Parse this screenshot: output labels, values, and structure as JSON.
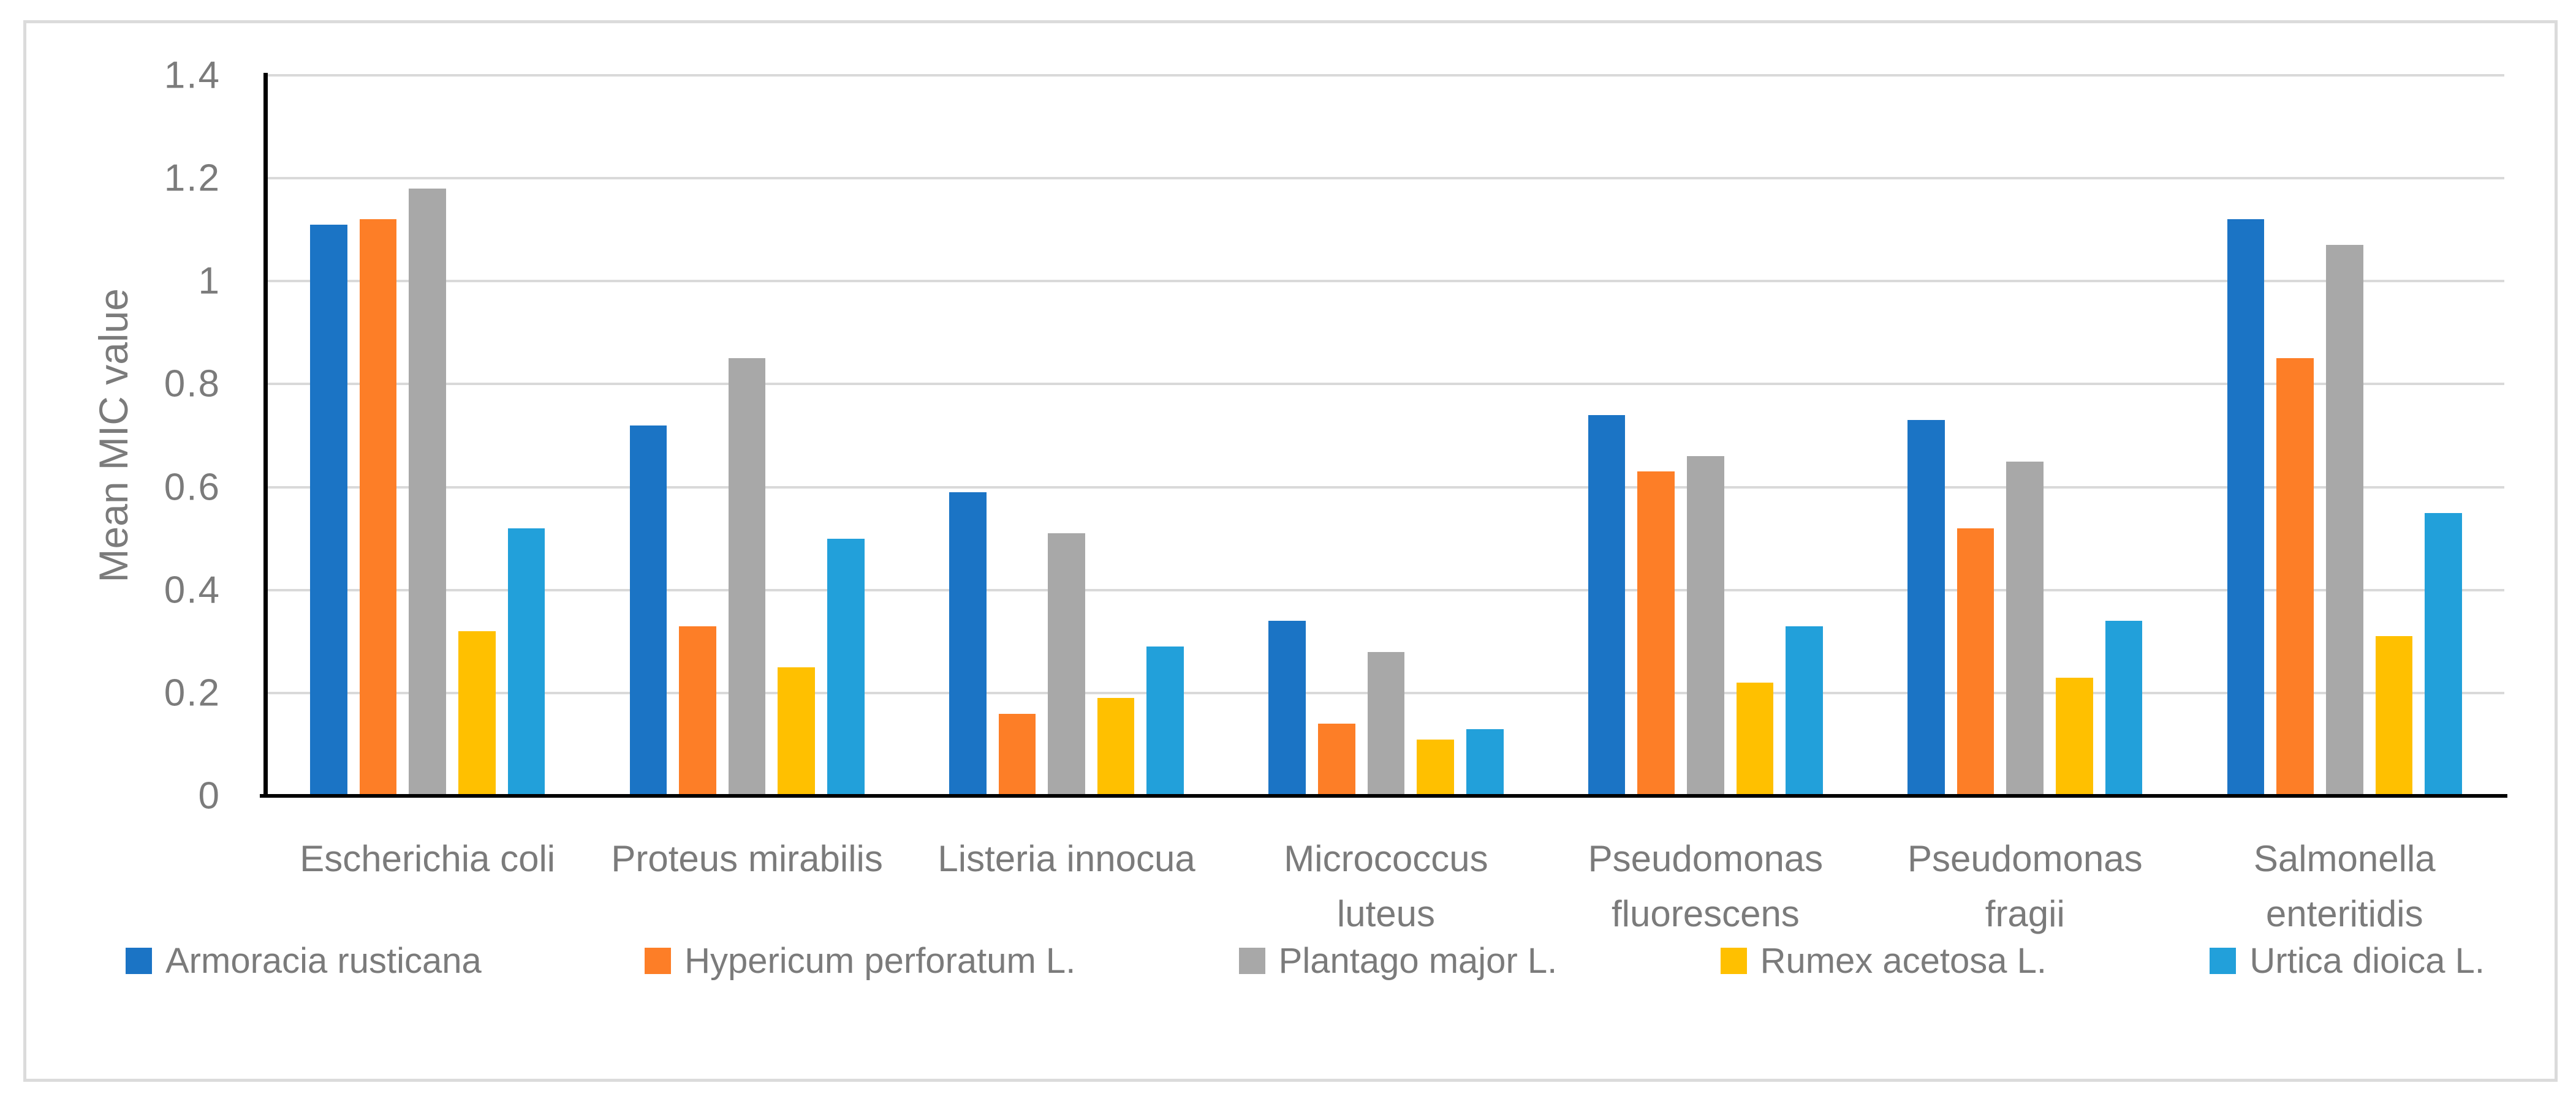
{
  "figure": {
    "background": "#FFFFFF",
    "border_color": "#DBDBDB"
  },
  "chart_data": {
    "type": "bar",
    "title": "",
    "xlabel": "",
    "ylabel": "Mean MIC value",
    "ylim": [
      0,
      1.4
    ],
    "ytick_values": [
      0,
      0.2,
      0.4,
      0.6,
      0.8,
      1,
      1.2,
      1.4
    ],
    "ytick_labels": [
      "0",
      "0.2",
      "0.4",
      "0.6",
      "0.8",
      "1",
      "1.2",
      "1.4"
    ],
    "grid": "horizontal",
    "grid_color": "#D9D9D9",
    "axis_color": "#000000",
    "text_color": "#7B7B7B",
    "legend_position": "bottom",
    "categories": [
      "Escherichia coli",
      "Proteus mirabilis",
      "Listeria innocua",
      "Micrococcus luteus",
      "Pseudomonas fluorescens",
      "Pseudomonas fragii",
      "Salmonella enteritidis"
    ],
    "category_labels": [
      "Escherichia coli",
      "Proteus mirabilis",
      "Listeria innocua",
      "Micrococcus\nluteus",
      "Pseudomonas\nfluorescens",
      "Pseudomonas\nfragii",
      "Salmonella\nenteritidis"
    ],
    "series": [
      {
        "name": "Armoracia rusticana",
        "color": "#1B74C5",
        "values": [
          1.11,
          0.72,
          0.59,
          0.34,
          0.74,
          0.73,
          1.12
        ]
      },
      {
        "name": "Hypericum perforatum L.",
        "color": "#FD7E27",
        "values": [
          1.12,
          0.33,
          0.16,
          0.14,
          0.63,
          0.52,
          0.85
        ]
      },
      {
        "name": "Plantago major L.",
        "color": "#A8A8A8",
        "values": [
          1.18,
          0.85,
          0.51,
          0.28,
          0.66,
          0.65,
          1.07
        ]
      },
      {
        "name": "Rumex acetosa L.",
        "color": "#FFC000",
        "values": [
          0.32,
          0.25,
          0.19,
          0.11,
          0.22,
          0.23,
          0.31
        ]
      },
      {
        "name": "Urtica dioica L.",
        "color": "#22A0DA",
        "values": [
          0.52,
          0.5,
          0.29,
          0.13,
          0.33,
          0.34,
          0.55
        ]
      }
    ]
  }
}
